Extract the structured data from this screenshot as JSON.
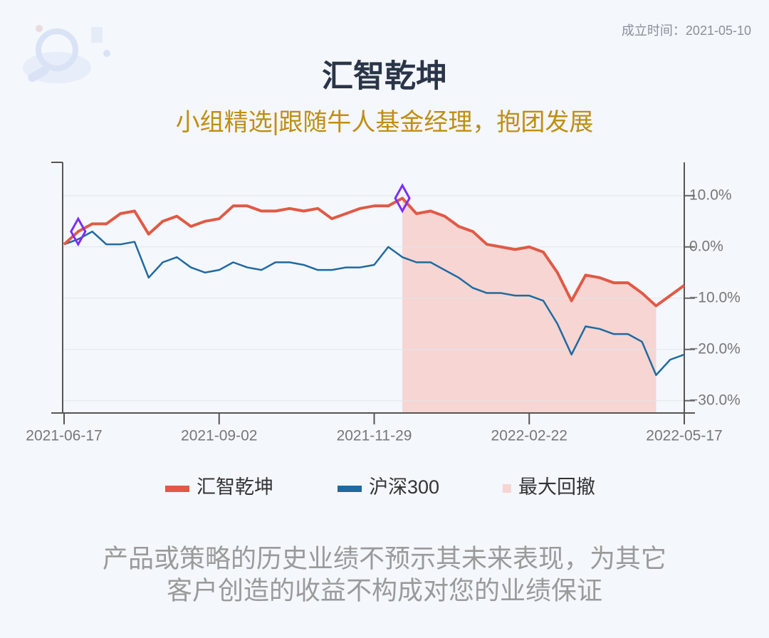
{
  "header": {
    "founded": "成立时间：2021-05-10",
    "title": "汇智乾坤",
    "subtitle": "小组精选|跟随牛人基金经理，抱团发展"
  },
  "chart_data": {
    "type": "line",
    "categories": [
      "2021-06-17",
      null,
      null,
      null,
      null,
      null,
      null,
      null,
      null,
      null,
      null,
      "2021-09-02",
      null,
      null,
      null,
      null,
      null,
      null,
      null,
      null,
      null,
      null,
      "2021-11-29",
      null,
      null,
      null,
      null,
      null,
      null,
      null,
      null,
      null,
      null,
      "2022-02-22",
      null,
      null,
      null,
      null,
      null,
      null,
      null,
      null,
      null,
      null,
      "2022-05-17"
    ],
    "series": [
      {
        "name": "汇智乾坤",
        "color": "#e05a45",
        "values": [
          0.5,
          3,
          4.5,
          4.5,
          6.5,
          7,
          2.5,
          5,
          6,
          4,
          5,
          5.5,
          8,
          8,
          7,
          7,
          7.5,
          7,
          7.5,
          5.5,
          6.5,
          7.5,
          8,
          8,
          9.5,
          6.5,
          7,
          6,
          4,
          3,
          0.5,
          0,
          -0.5,
          0,
          -1,
          -5,
          -10.5,
          -5.5,
          -6,
          -7,
          -7,
          -9,
          -11.5,
          -9.5,
          -7.5
        ]
      },
      {
        "name": "沪深300",
        "color": "#1f6aa0",
        "values": [
          0.5,
          1.5,
          3,
          0.5,
          0.5,
          1,
          -6,
          -3,
          -2,
          -4,
          -5,
          -4.5,
          -3,
          -4,
          -4.5,
          -3,
          -3,
          -3.5,
          -4.5,
          -4.5,
          -4,
          -4,
          -3.5,
          0,
          -2,
          -3,
          -3,
          -4.5,
          -6,
          -8,
          -9,
          -9,
          -9.5,
          -9.5,
          -10.5,
          -15,
          -21,
          -15.5,
          -16,
          -17,
          -17,
          -18.5,
          -25,
          -22,
          -21
        ]
      }
    ],
    "drawdown": {
      "name": "最大回撤",
      "color": "#f6d5d2",
      "from_index": 24,
      "to_index": 42
    },
    "markers": [
      1,
      24
    ],
    "ylim": [
      -32.4,
      16.5
    ],
    "yticks": [
      {
        "value": 10,
        "label": "10.0%"
      },
      {
        "value": 0,
        "label": "0.0%"
      },
      {
        "value": -10,
        "label": "−10.0%"
      },
      {
        "value": -20,
        "label": "−20.0%"
      },
      {
        "value": -30,
        "label": "−30.0%"
      }
    ],
    "grid": true
  },
  "footer": {
    "disclaimer": [
      "产品或策略的历史业绩不预示其未来表现，为其它",
      "客户创造的收益不构成对您的业绩保证"
    ]
  }
}
